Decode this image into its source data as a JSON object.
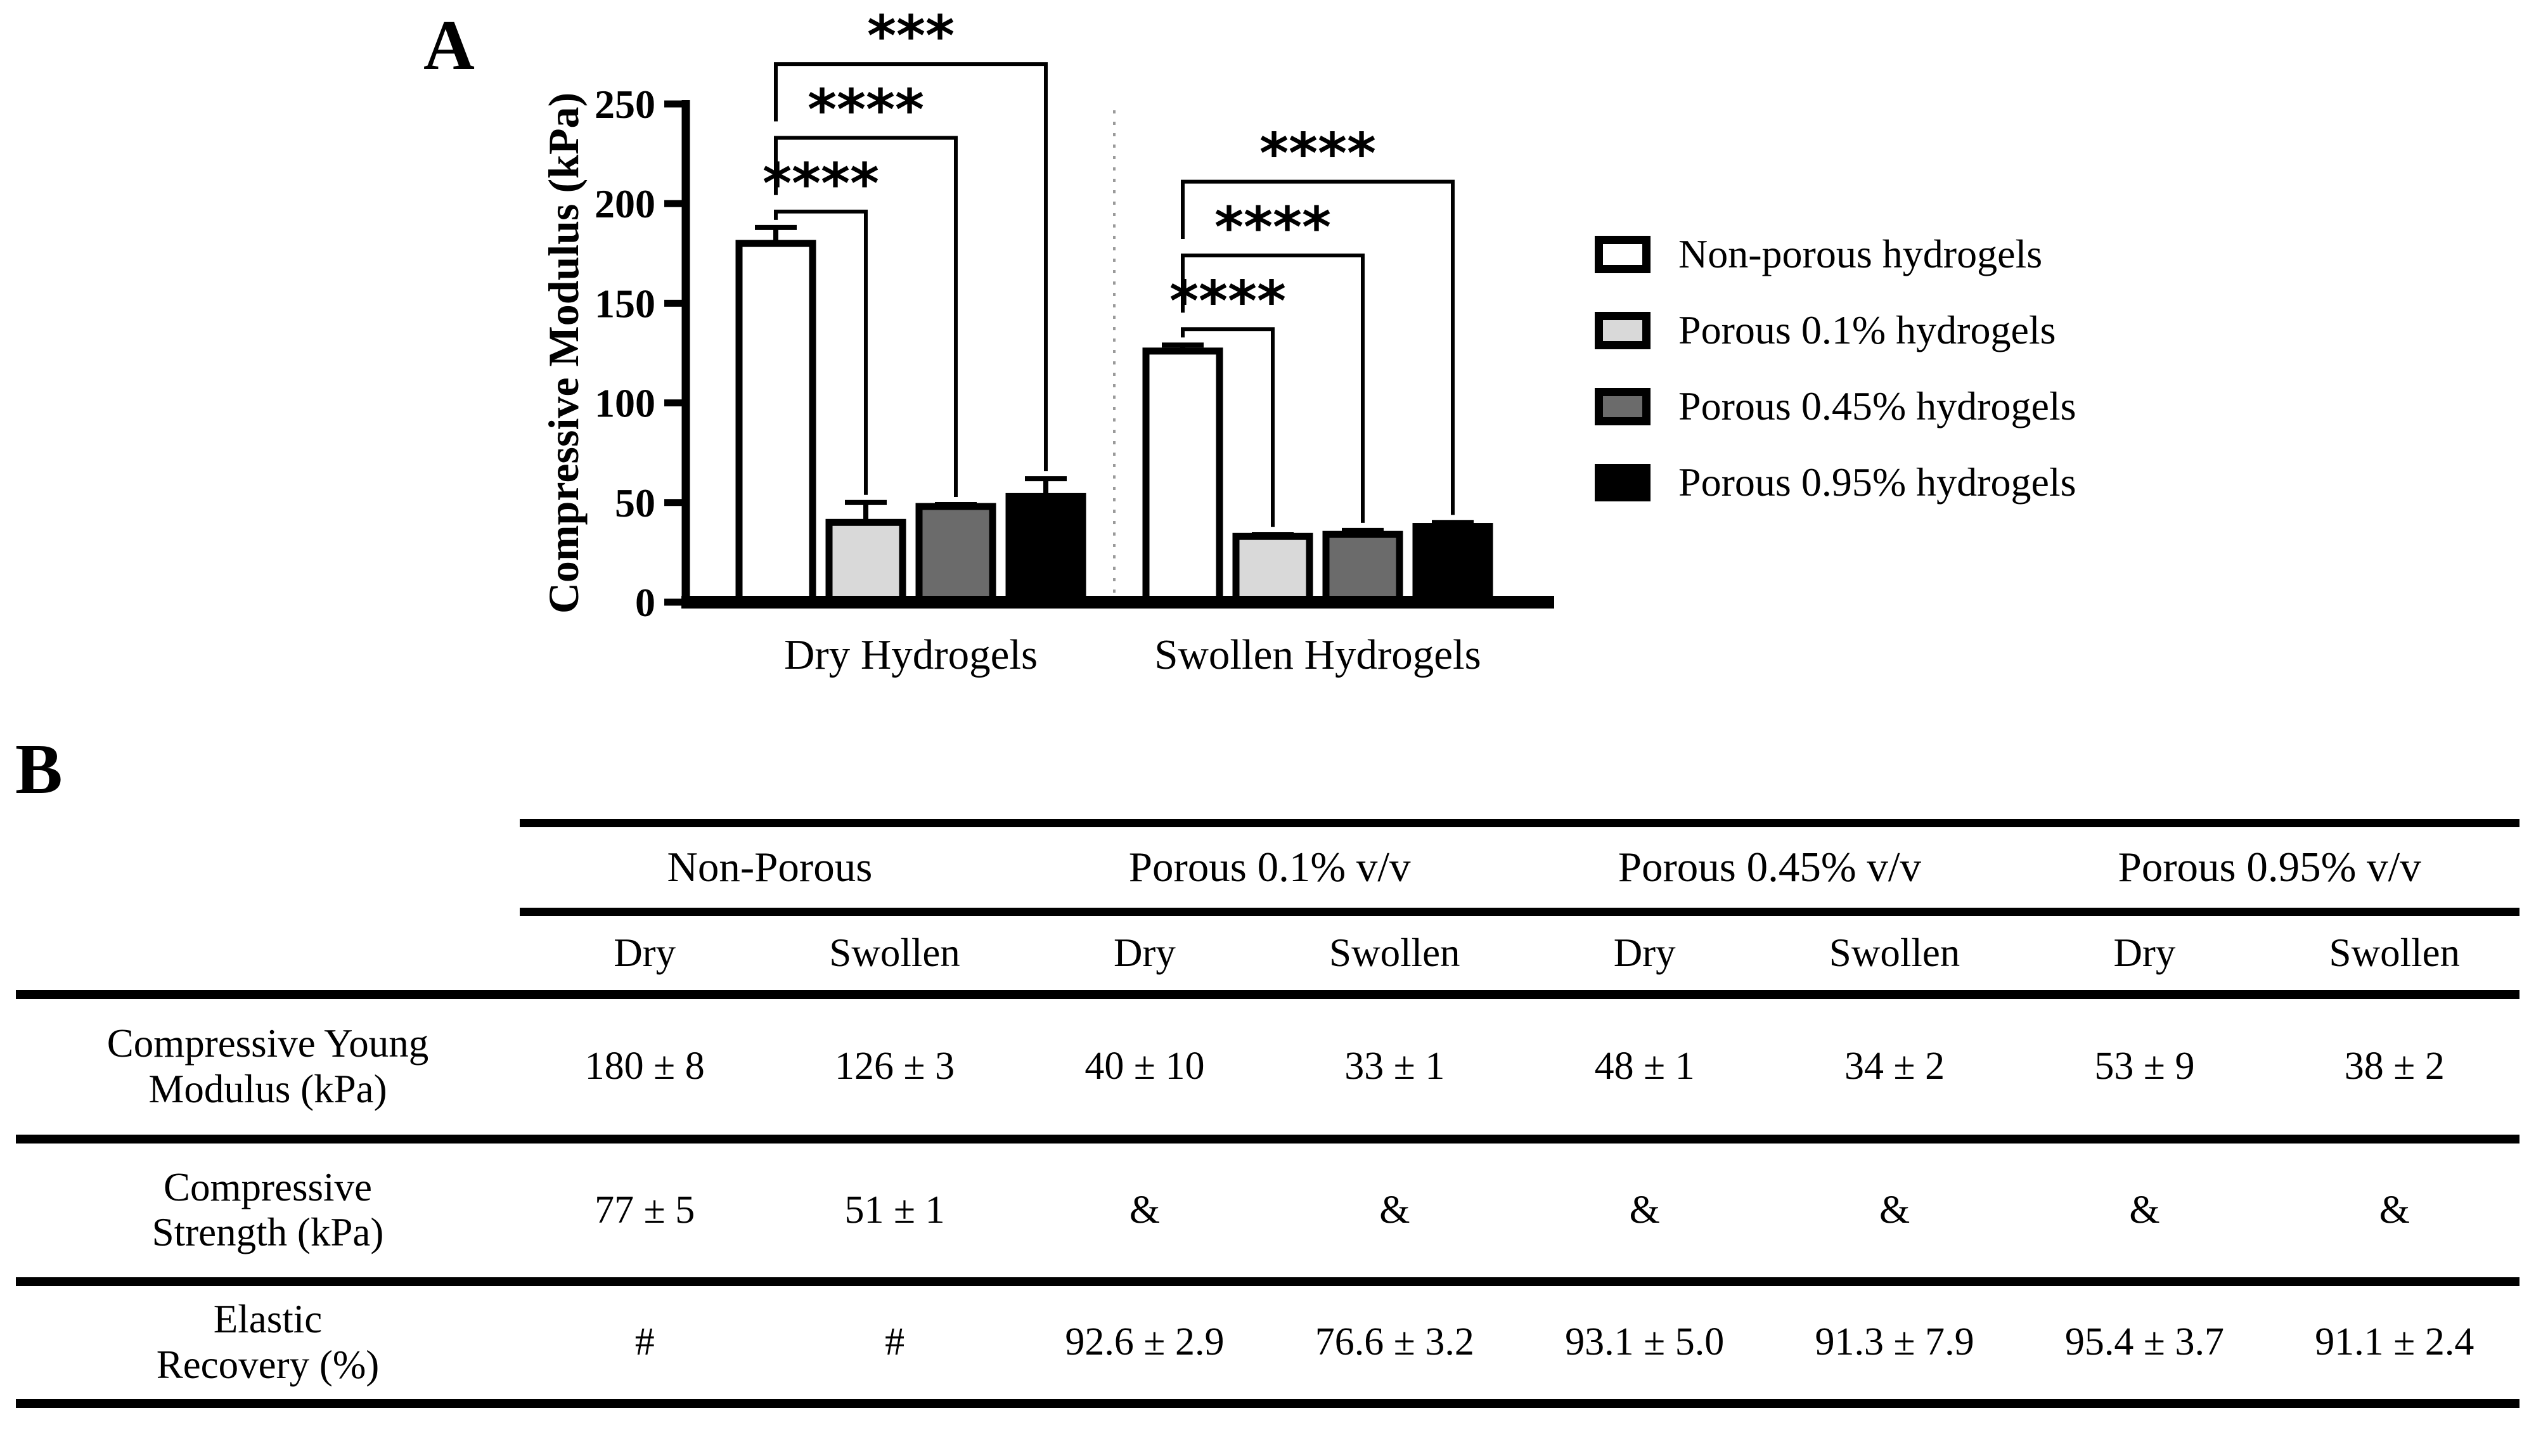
{
  "panel_a": {
    "label": "A"
  },
  "chart_data": {
    "type": "bar",
    "title": "",
    "ylabel": "Compressive Modulus (kPa)",
    "ylim": [
      0,
      250
    ],
    "yticks": [
      0,
      50,
      100,
      150,
      200,
      250
    ],
    "categories": [
      "Dry Hydrogels",
      "Swollen Hydrogels"
    ],
    "series": [
      {
        "name": "Non-porous hydrogels",
        "fill": "#ffffff",
        "values": [
          180,
          126
        ],
        "errors": [
          8,
          3
        ]
      },
      {
        "name": "Porous 0.1% hydrogels",
        "fill": "#d9d9d9",
        "values": [
          40,
          33
        ],
        "errors": [
          10,
          1
        ]
      },
      {
        "name": "Porous 0.45% hydrogels",
        "fill": "#6b6b6b",
        "values": [
          48,
          34
        ],
        "errors": [
          1,
          2
        ]
      },
      {
        "name": "Porous 0.95% hydrogels",
        "fill": "#000000",
        "values": [
          53,
          38
        ],
        "errors": [
          9,
          2
        ]
      }
    ],
    "error_bars": "upper",
    "grid": false,
    "legend_position": "right",
    "group_divider": "dotted",
    "significance": [
      {
        "category": "Dry Hydrogels",
        "comparisons": [
          {
            "from": 0,
            "to": 1,
            "label": "****"
          },
          {
            "from": 0,
            "to": 2,
            "label": "****"
          },
          {
            "from": 0,
            "to": 3,
            "label": "***"
          }
        ]
      },
      {
        "category": "Swollen Hydrogels",
        "comparisons": [
          {
            "from": 0,
            "to": 1,
            "label": "****"
          },
          {
            "from": 0,
            "to": 2,
            "label": "****"
          },
          {
            "from": 0,
            "to": 3,
            "label": "****"
          }
        ]
      }
    ]
  },
  "panel_b": {
    "label": "B",
    "table": {
      "group_headers": [
        "Non-Porous",
        "Porous 0.1% v/v",
        "Porous 0.45% v/v",
        "Porous 0.95% v/v"
      ],
      "sub_headers": [
        "Dry",
        "Swollen",
        "Dry",
        "Swollen",
        "Dry",
        "Swollen",
        "Dry",
        "Swollen"
      ],
      "rows": [
        {
          "label_lines": [
            "Compressive Young",
            "Modulus (kPa)"
          ],
          "values": [
            "180 ± 8",
            "126 ± 3",
            "40 ± 10",
            "33 ± 1",
            "48 ± 1",
            "34 ± 2",
            "53 ± 9",
            "38 ± 2"
          ]
        },
        {
          "label_lines": [
            "Compressive",
            "Strength (kPa)"
          ],
          "values": [
            "77 ± 5",
            "51 ± 1",
            "&",
            "&",
            "&",
            "&",
            "&",
            "&"
          ]
        },
        {
          "label_lines": [
            "Elastic",
            "Recovery (%)"
          ],
          "values": [
            "#",
            "#",
            "92.6 ± 2.9",
            "76.6 ± 3.2",
            "93.1 ± 5.0",
            "91.3 ± 7.9",
            "95.4 ± 3.7",
            "91.1 ± 2.4"
          ]
        }
      ]
    }
  }
}
